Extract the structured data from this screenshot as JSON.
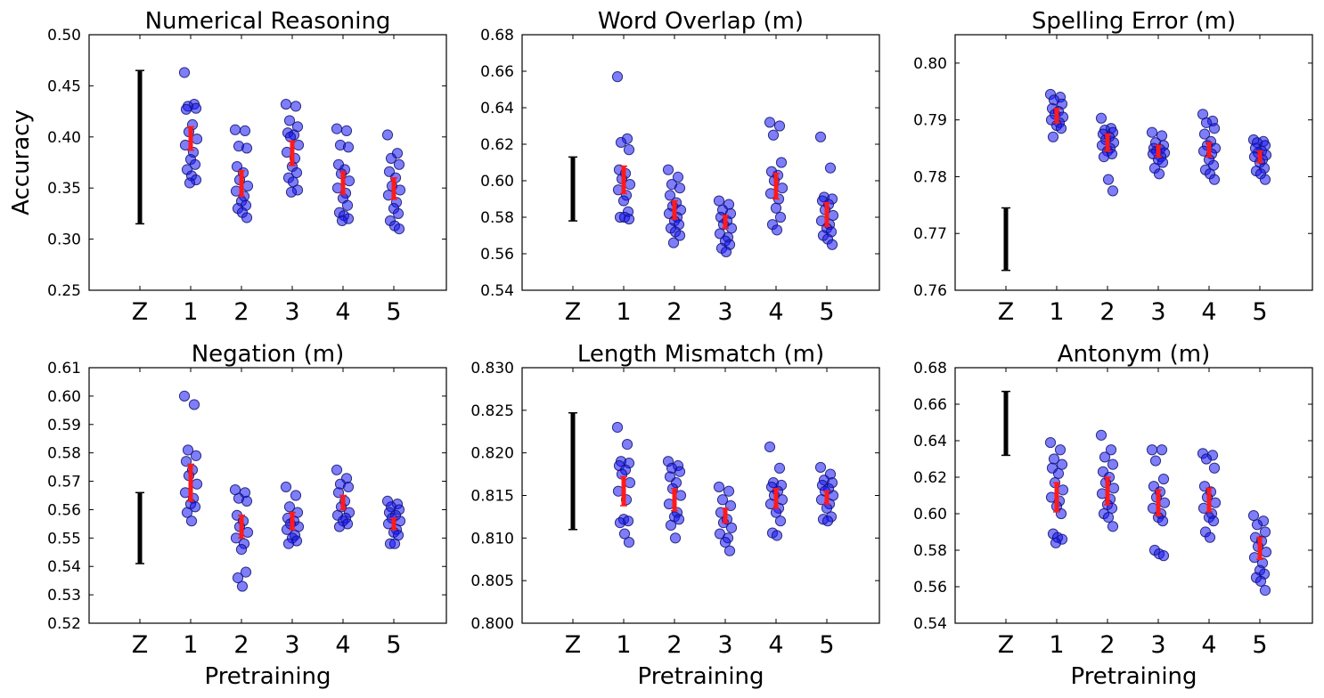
{
  "chart_data": [
    {
      "type": "scatter",
      "title": "Numerical Reasoning",
      "ylabel": "Accuracy",
      "xlabel": "",
      "categories": [
        "Z",
        "1",
        "2",
        "3",
        "4",
        "5"
      ],
      "ylim": [
        0.25,
        0.5
      ],
      "yticks": [
        "0.25",
        "0.30",
        "0.35",
        "0.40",
        "0.45",
        "0.50"
      ],
      "zero_range": [
        0.315,
        0.465
      ],
      "points": [
        [
          0.463,
          0.432,
          0.43,
          0.428,
          0.427,
          0.412,
          0.405,
          0.398,
          0.392,
          0.385,
          0.378,
          0.373,
          0.368,
          0.362,
          0.358,
          0.355
        ],
        [
          0.407,
          0.406,
          0.391,
          0.389,
          0.371,
          0.365,
          0.358,
          0.352,
          0.347,
          0.342,
          0.337,
          0.333,
          0.33,
          0.326,
          0.321
        ],
        [
          0.432,
          0.43,
          0.416,
          0.41,
          0.404,
          0.402,
          0.4,
          0.392,
          0.385,
          0.379,
          0.371,
          0.365,
          0.36,
          0.356,
          0.348,
          0.346
        ],
        [
          0.408,
          0.406,
          0.392,
          0.39,
          0.373,
          0.368,
          0.364,
          0.357,
          0.35,
          0.345,
          0.34,
          0.333,
          0.326,
          0.323,
          0.32,
          0.318
        ],
        [
          0.402,
          0.384,
          0.379,
          0.373,
          0.366,
          0.36,
          0.352,
          0.348,
          0.343,
          0.336,
          0.33,
          0.325,
          0.318,
          0.313,
          0.31
        ]
      ],
      "ranges": [
        [
          0.387,
          0.41
        ],
        [
          0.342,
          0.367
        ],
        [
          0.372,
          0.396
        ],
        [
          0.344,
          0.366
        ],
        [
          0.339,
          0.36
        ]
      ]
    },
    {
      "type": "scatter",
      "title": "Word Overlap (m)",
      "ylabel": "",
      "xlabel": "",
      "categories": [
        "Z",
        "1",
        "2",
        "3",
        "4",
        "5"
      ],
      "ylim": [
        0.54,
        0.68
      ],
      "yticks": [
        "0.54",
        "0.56",
        "0.58",
        "0.60",
        "0.62",
        "0.64",
        "0.66",
        "0.68"
      ],
      "zero_range": [
        0.578,
        0.613
      ],
      "points": [
        [
          0.657,
          0.623,
          0.621,
          0.617,
          0.606,
          0.604,
          0.601,
          0.598,
          0.595,
          0.592,
          0.589,
          0.583,
          0.58,
          0.58,
          0.579
        ],
        [
          0.606,
          0.602,
          0.598,
          0.596,
          0.592,
          0.588,
          0.586,
          0.584,
          0.582,
          0.58,
          0.578,
          0.576,
          0.574,
          0.572,
          0.57,
          0.566
        ],
        [
          0.589,
          0.587,
          0.584,
          0.582,
          0.58,
          0.578,
          0.576,
          0.574,
          0.571,
          0.569,
          0.567,
          0.565,
          0.563,
          0.561
        ],
        [
          0.632,
          0.63,
          0.625,
          0.61,
          0.605,
          0.603,
          0.6,
          0.596,
          0.593,
          0.59,
          0.585,
          0.58,
          0.576,
          0.573
        ],
        [
          0.624,
          0.607,
          0.591,
          0.59,
          0.589,
          0.587,
          0.584,
          0.581,
          0.578,
          0.576,
          0.574,
          0.572,
          0.57,
          0.568,
          0.565
        ]
      ],
      "ranges": [
        [
          0.593,
          0.608
        ],
        [
          0.579,
          0.589
        ],
        [
          0.574,
          0.581
        ],
        [
          0.59,
          0.604
        ],
        [
          0.575,
          0.588
        ]
      ]
    },
    {
      "type": "scatter",
      "title": "Spelling Error (m)",
      "ylabel": "",
      "xlabel": "",
      "categories": [
        "Z",
        "1",
        "2",
        "3",
        "4",
        "5"
      ],
      "ylim": [
        0.76,
        0.805
      ],
      "yticks": [
        "0.76",
        "0.77",
        "0.78",
        "0.79",
        "0.80"
      ],
      "zero_range": [
        0.7635,
        0.7745
      ],
      "points": [
        [
          0.7945,
          0.794,
          0.7935,
          0.7928,
          0.792,
          0.7915,
          0.791,
          0.7905,
          0.79,
          0.7895,
          0.789,
          0.7885,
          0.787
        ],
        [
          0.7903,
          0.7885,
          0.7882,
          0.7878,
          0.7875,
          0.787,
          0.7865,
          0.786,
          0.7855,
          0.785,
          0.7845,
          0.784,
          0.7835,
          0.7795,
          0.7775
        ],
        [
          0.7878,
          0.7872,
          0.786,
          0.7855,
          0.785,
          0.7848,
          0.7845,
          0.7842,
          0.784,
          0.7835,
          0.783,
          0.7825,
          0.7815,
          0.7805
        ],
        [
          0.791,
          0.7898,
          0.7895,
          0.7885,
          0.7875,
          0.7862,
          0.7855,
          0.785,
          0.7845,
          0.784,
          0.783,
          0.782,
          0.7812,
          0.7805,
          0.7795
        ],
        [
          0.7865,
          0.7862,
          0.786,
          0.7855,
          0.785,
          0.7845,
          0.7842,
          0.7838,
          0.7835,
          0.783,
          0.7825,
          0.7815,
          0.781,
          0.7805,
          0.7795
        ]
      ],
      "ranges": [
        [
          0.7895,
          0.792
        ],
        [
          0.7845,
          0.7875
        ],
        [
          0.7835,
          0.7855
        ],
        [
          0.7835,
          0.786
        ],
        [
          0.7825,
          0.7845
        ]
      ]
    },
    {
      "type": "scatter",
      "title": "Negation (m)",
      "ylabel": "",
      "xlabel": "Pretraining",
      "categories": [
        "Z",
        "1",
        "2",
        "3",
        "4",
        "5"
      ],
      "ylim": [
        0.52,
        0.61
      ],
      "yticks": [
        "0.52",
        "0.53",
        "0.54",
        "0.55",
        "0.56",
        "0.57",
        "0.58",
        "0.59",
        "0.60",
        "0.61"
      ],
      "zero_range": [
        0.541,
        0.566
      ],
      "points": [
        [
          0.6,
          0.597,
          0.581,
          0.579,
          0.577,
          0.574,
          0.572,
          0.569,
          0.566,
          0.564,
          0.562,
          0.561,
          0.559,
          0.556
        ],
        [
          0.567,
          0.566,
          0.564,
          0.563,
          0.558,
          0.556,
          0.554,
          0.552,
          0.55,
          0.548,
          0.546,
          0.538,
          0.536,
          0.533
        ],
        [
          0.568,
          0.565,
          0.561,
          0.559,
          0.557,
          0.556,
          0.555,
          0.554,
          0.553,
          0.551,
          0.55,
          0.549,
          0.548
        ],
        [
          0.574,
          0.571,
          0.569,
          0.568,
          0.566,
          0.563,
          0.561,
          0.559,
          0.558,
          0.557,
          0.556,
          0.555,
          0.554
        ],
        [
          0.563,
          0.562,
          0.561,
          0.56,
          0.559,
          0.558,
          0.557,
          0.556,
          0.555,
          0.553,
          0.552,
          0.551,
          0.548,
          0.548
        ]
      ],
      "ranges": [
        [
          0.563,
          0.576
        ],
        [
          0.55,
          0.558
        ],
        [
          0.553,
          0.559
        ],
        [
          0.56,
          0.565
        ],
        [
          0.553,
          0.557
        ]
      ]
    },
    {
      "type": "scatter",
      "title": "Length Mismatch (m)",
      "ylabel": "",
      "xlabel": "Pretraining",
      "categories": [
        "Z",
        "1",
        "2",
        "3",
        "4",
        "5"
      ],
      "ylim": [
        0.8,
        0.83
      ],
      "yticks": [
        "0.800",
        "0.805",
        "0.810",
        "0.815",
        "0.820",
        "0.825",
        "0.830"
      ],
      "zero_range": [
        0.811,
        0.8247
      ],
      "points": [
        [
          0.823,
          0.821,
          0.819,
          0.8188,
          0.8185,
          0.818,
          0.8175,
          0.8165,
          0.8155,
          0.8145,
          0.8122,
          0.812,
          0.8118,
          0.8105,
          0.8095
        ],
        [
          0.819,
          0.8185,
          0.8182,
          0.8178,
          0.8172,
          0.8165,
          0.8158,
          0.815,
          0.814,
          0.813,
          0.8125,
          0.8122,
          0.8115,
          0.81
        ],
        [
          0.816,
          0.8155,
          0.8145,
          0.8138,
          0.813,
          0.8122,
          0.8118,
          0.8112,
          0.8105,
          0.81,
          0.8095,
          0.8085
        ],
        [
          0.8207,
          0.8182,
          0.8165,
          0.8162,
          0.816,
          0.8155,
          0.815,
          0.8145,
          0.814,
          0.8135,
          0.813,
          0.812,
          0.8106,
          0.8103
        ],
        [
          0.8183,
          0.8175,
          0.8168,
          0.8165,
          0.8162,
          0.8158,
          0.8155,
          0.815,
          0.8145,
          0.814,
          0.8135,
          0.8125,
          0.8122,
          0.812
        ]
      ],
      "ranges": [
        [
          0.8138,
          0.8172
        ],
        [
          0.8132,
          0.8158
        ],
        [
          0.8118,
          0.8135
        ],
        [
          0.8135,
          0.8158
        ],
        [
          0.814,
          0.8155
        ]
      ]
    },
    {
      "type": "scatter",
      "title": "Antonym (m)",
      "ylabel": "",
      "xlabel": "Pretraining",
      "categories": [
        "Z",
        "1",
        "2",
        "3",
        "4",
        "5"
      ],
      "ylim": [
        0.54,
        0.68
      ],
      "yticks": [
        "0.54",
        "0.56",
        "0.58",
        "0.60",
        "0.62",
        "0.64",
        "0.66",
        "0.68"
      ],
      "zero_range": [
        0.632,
        0.667
      ],
      "points": [
        [
          0.639,
          0.635,
          0.63,
          0.627,
          0.625,
          0.622,
          0.617,
          0.613,
          0.609,
          0.607,
          0.604,
          0.6,
          0.589,
          0.587,
          0.586,
          0.584
        ],
        [
          0.643,
          0.635,
          0.631,
          0.627,
          0.623,
          0.62,
          0.617,
          0.614,
          0.611,
          0.608,
          0.605,
          0.603,
          0.6,
          0.598,
          0.593
        ],
        [
          0.635,
          0.635,
          0.629,
          0.619,
          0.615,
          0.612,
          0.609,
          0.606,
          0.603,
          0.6,
          0.598,
          0.596,
          0.58,
          0.578,
          0.577
        ],
        [
          0.633,
          0.632,
          0.63,
          0.625,
          0.615,
          0.612,
          0.609,
          0.606,
          0.603,
          0.6,
          0.598,
          0.596,
          0.59,
          0.587
        ],
        [
          0.599,
          0.596,
          0.594,
          0.59,
          0.587,
          0.585,
          0.582,
          0.579,
          0.576,
          0.573,
          0.569,
          0.567,
          0.565,
          0.563,
          0.558
        ]
      ],
      "ranges": [
        [
          0.601,
          0.617
        ],
        [
          0.605,
          0.62
        ],
        [
          0.599,
          0.613
        ],
        [
          0.601,
          0.614
        ],
        [
          0.575,
          0.587
        ]
      ]
    }
  ]
}
